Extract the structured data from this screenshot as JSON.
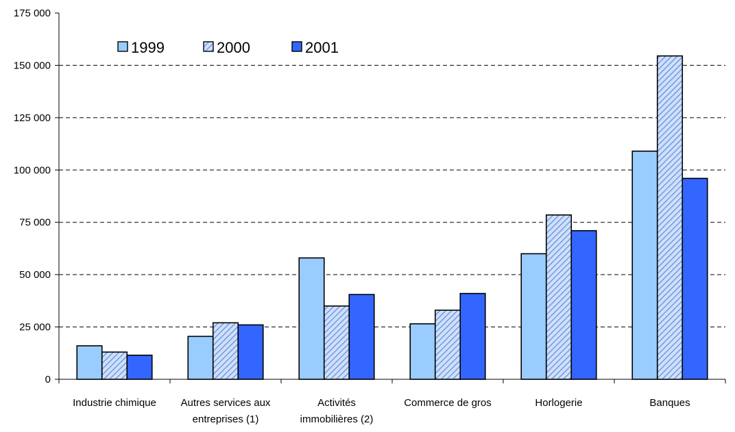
{
  "chart_data": {
    "type": "bar",
    "title": "",
    "xlabel": "",
    "ylabel": "",
    "ylim": [
      0,
      175000
    ],
    "yticks": [
      0,
      25000,
      50000,
      75000,
      100000,
      125000,
      150000,
      175000
    ],
    "ytick_labels": [
      "0",
      "25 000",
      "50 000",
      "75 000",
      "100 000",
      "125 000",
      "150 000",
      "175 000"
    ],
    "grid": "horizontal dashed",
    "legend_position": "top-left",
    "categories": [
      [
        "Industrie chimique"
      ],
      [
        "Autres services aux",
        "entreprises (1)"
      ],
      [
        "Activités",
        "immobilières (2)"
      ],
      [
        "Commerce de gros"
      ],
      [
        "Horlogerie"
      ],
      [
        "Banques"
      ]
    ],
    "series": [
      {
        "name": "1999",
        "color": "#99ccff",
        "pattern": "solid",
        "values": [
          16000,
          20500,
          58000,
          26500,
          60000,
          109000
        ]
      },
      {
        "name": "2000",
        "color": "#cce0ff",
        "pattern": "diagonal-hatch",
        "hatch_color": "#6688cc",
        "values": [
          13000,
          27000,
          35000,
          33000,
          78500,
          154500
        ]
      },
      {
        "name": "2001",
        "color": "#3366ff",
        "pattern": "solid",
        "values": [
          11500,
          26000,
          40500,
          41000,
          71000,
          96000
        ]
      }
    ]
  }
}
